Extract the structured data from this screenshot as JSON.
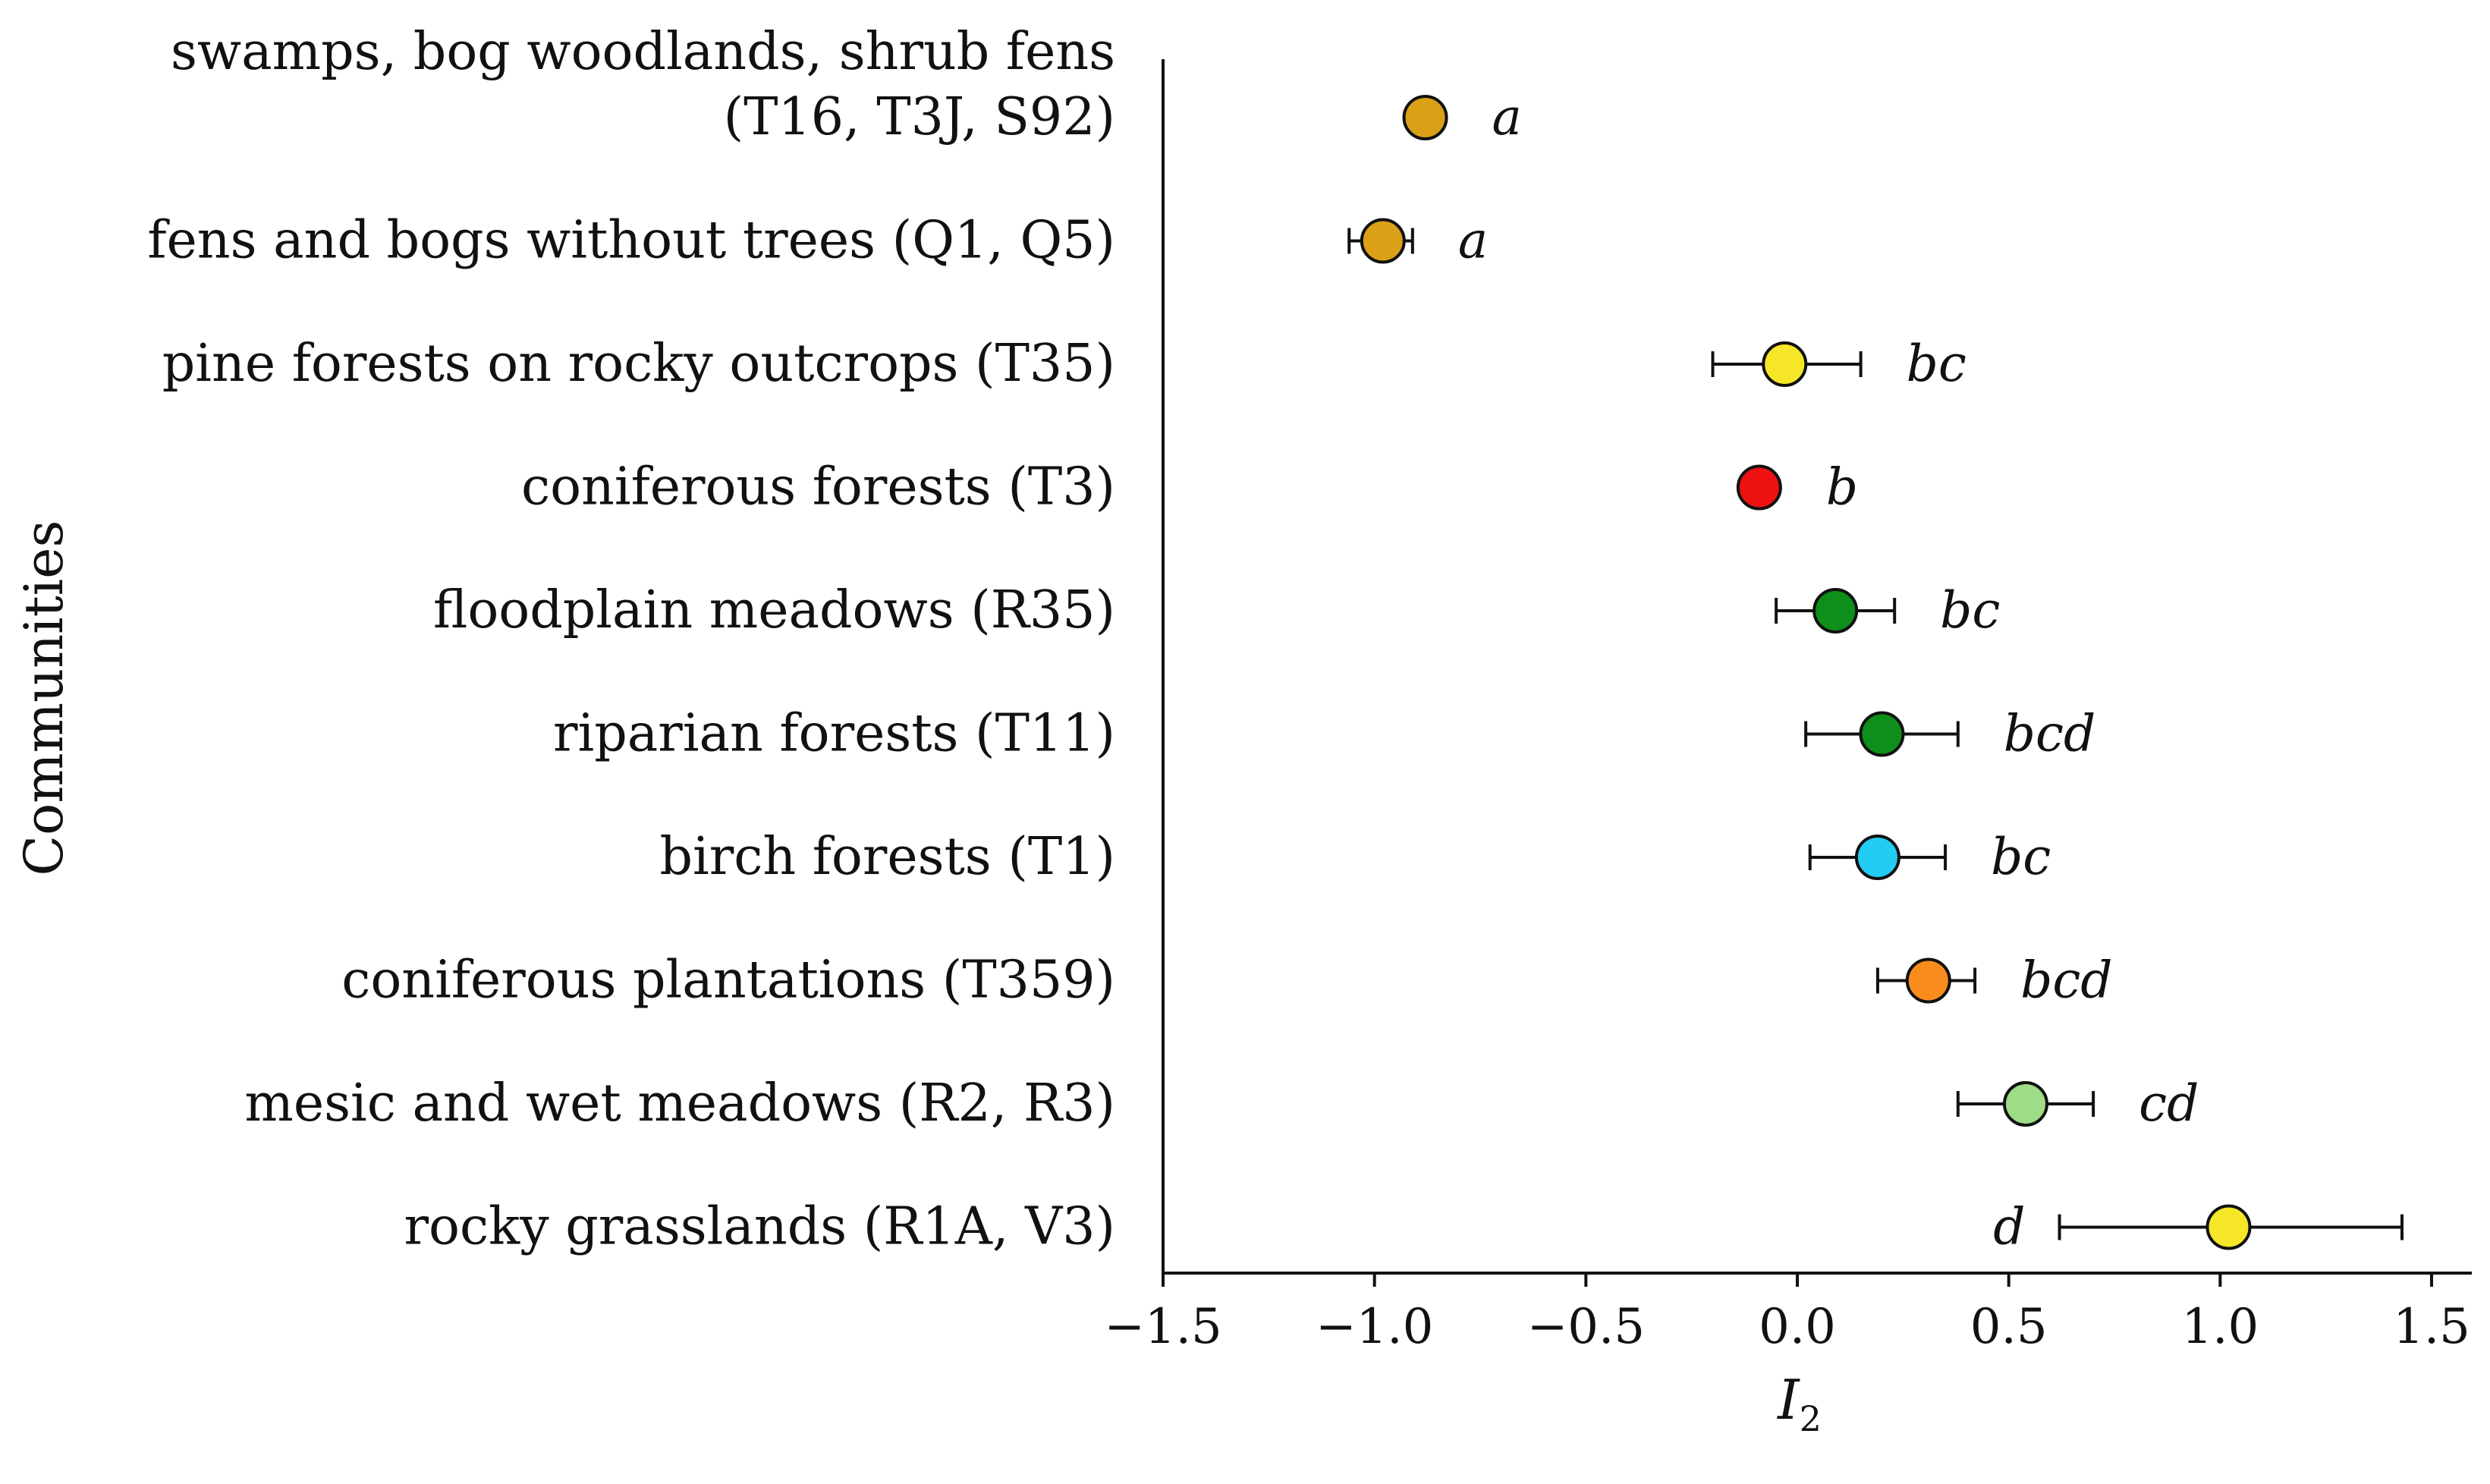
{
  "chart_data": {
    "type": "scatter",
    "title": "",
    "xlabel": "I",
    "xlabel_subscript": "2",
    "ylabel": "Communities",
    "xlim": [
      -1.5,
      1.5
    ],
    "xticks": [
      -1.5,
      -1.0,
      -0.5,
      0.0,
      0.5,
      1.0,
      1.5
    ],
    "xtick_labels": [
      "−1.5",
      "−1.0",
      "−0.5",
      "0.0",
      "0.5",
      "1.0",
      "1.5"
    ],
    "grid": false,
    "categories": [
      {
        "label_lines": [
          "swamps, bog woodlands, shrub fens",
          "(T16, T3J, S92)"
        ],
        "value": -0.88,
        "err_low": -0.91,
        "err_high": -0.84,
        "letter": "a",
        "letter_side": "right",
        "color": "#DAA018"
      },
      {
        "label_lines": [
          "fens and bogs without trees (Q1, Q5)"
        ],
        "value": -0.98,
        "err_low": -1.06,
        "err_high": -0.91,
        "letter": "a",
        "letter_side": "right",
        "color": "#DAA018"
      },
      {
        "label_lines": [
          "pine forests on rocky outcrops (T35)"
        ],
        "value": -0.03,
        "err_low": -0.2,
        "err_high": 0.15,
        "letter": "bc",
        "letter_side": "right",
        "color": "#F5E627"
      },
      {
        "label_lines": [
          "coniferous forests (T3)"
        ],
        "value": -0.09,
        "err_low": -0.09,
        "err_high": -0.09,
        "letter": "b",
        "letter_side": "right",
        "color": "#EE1111"
      },
      {
        "label_lines": [
          "floodplain meadows (R35)"
        ],
        "value": 0.09,
        "err_low": -0.05,
        "err_high": 0.23,
        "letter": "bc",
        "letter_side": "right",
        "color": "#0E8E1A"
      },
      {
        "label_lines": [
          "riparian forests (T11)"
        ],
        "value": 0.2,
        "err_low": 0.02,
        "err_high": 0.38,
        "letter": "bcd",
        "letter_side": "right",
        "color": "#0E8E1A"
      },
      {
        "label_lines": [
          "birch forests (T1)"
        ],
        "value": 0.19,
        "err_low": 0.03,
        "err_high": 0.35,
        "letter": "bc",
        "letter_side": "right",
        "color": "#22CCF2"
      },
      {
        "label_lines": [
          "coniferous plantations (T359)"
        ],
        "value": 0.31,
        "err_low": 0.19,
        "err_high": 0.42,
        "letter": "bcd",
        "letter_side": "right",
        "color": "#FA8C1E"
      },
      {
        "label_lines": [
          "mesic and wet meadows (R2, R3)"
        ],
        "value": 0.54,
        "err_low": 0.38,
        "err_high": 0.7,
        "letter": "cd",
        "letter_side": "right",
        "color": "#9FDC86"
      },
      {
        "label_lines": [
          "rocky grasslands (R1A, V3)"
        ],
        "value": 1.02,
        "err_low": 0.62,
        "err_high": 1.43,
        "letter": "d",
        "letter_side": "left",
        "color": "#F5E627"
      }
    ]
  }
}
